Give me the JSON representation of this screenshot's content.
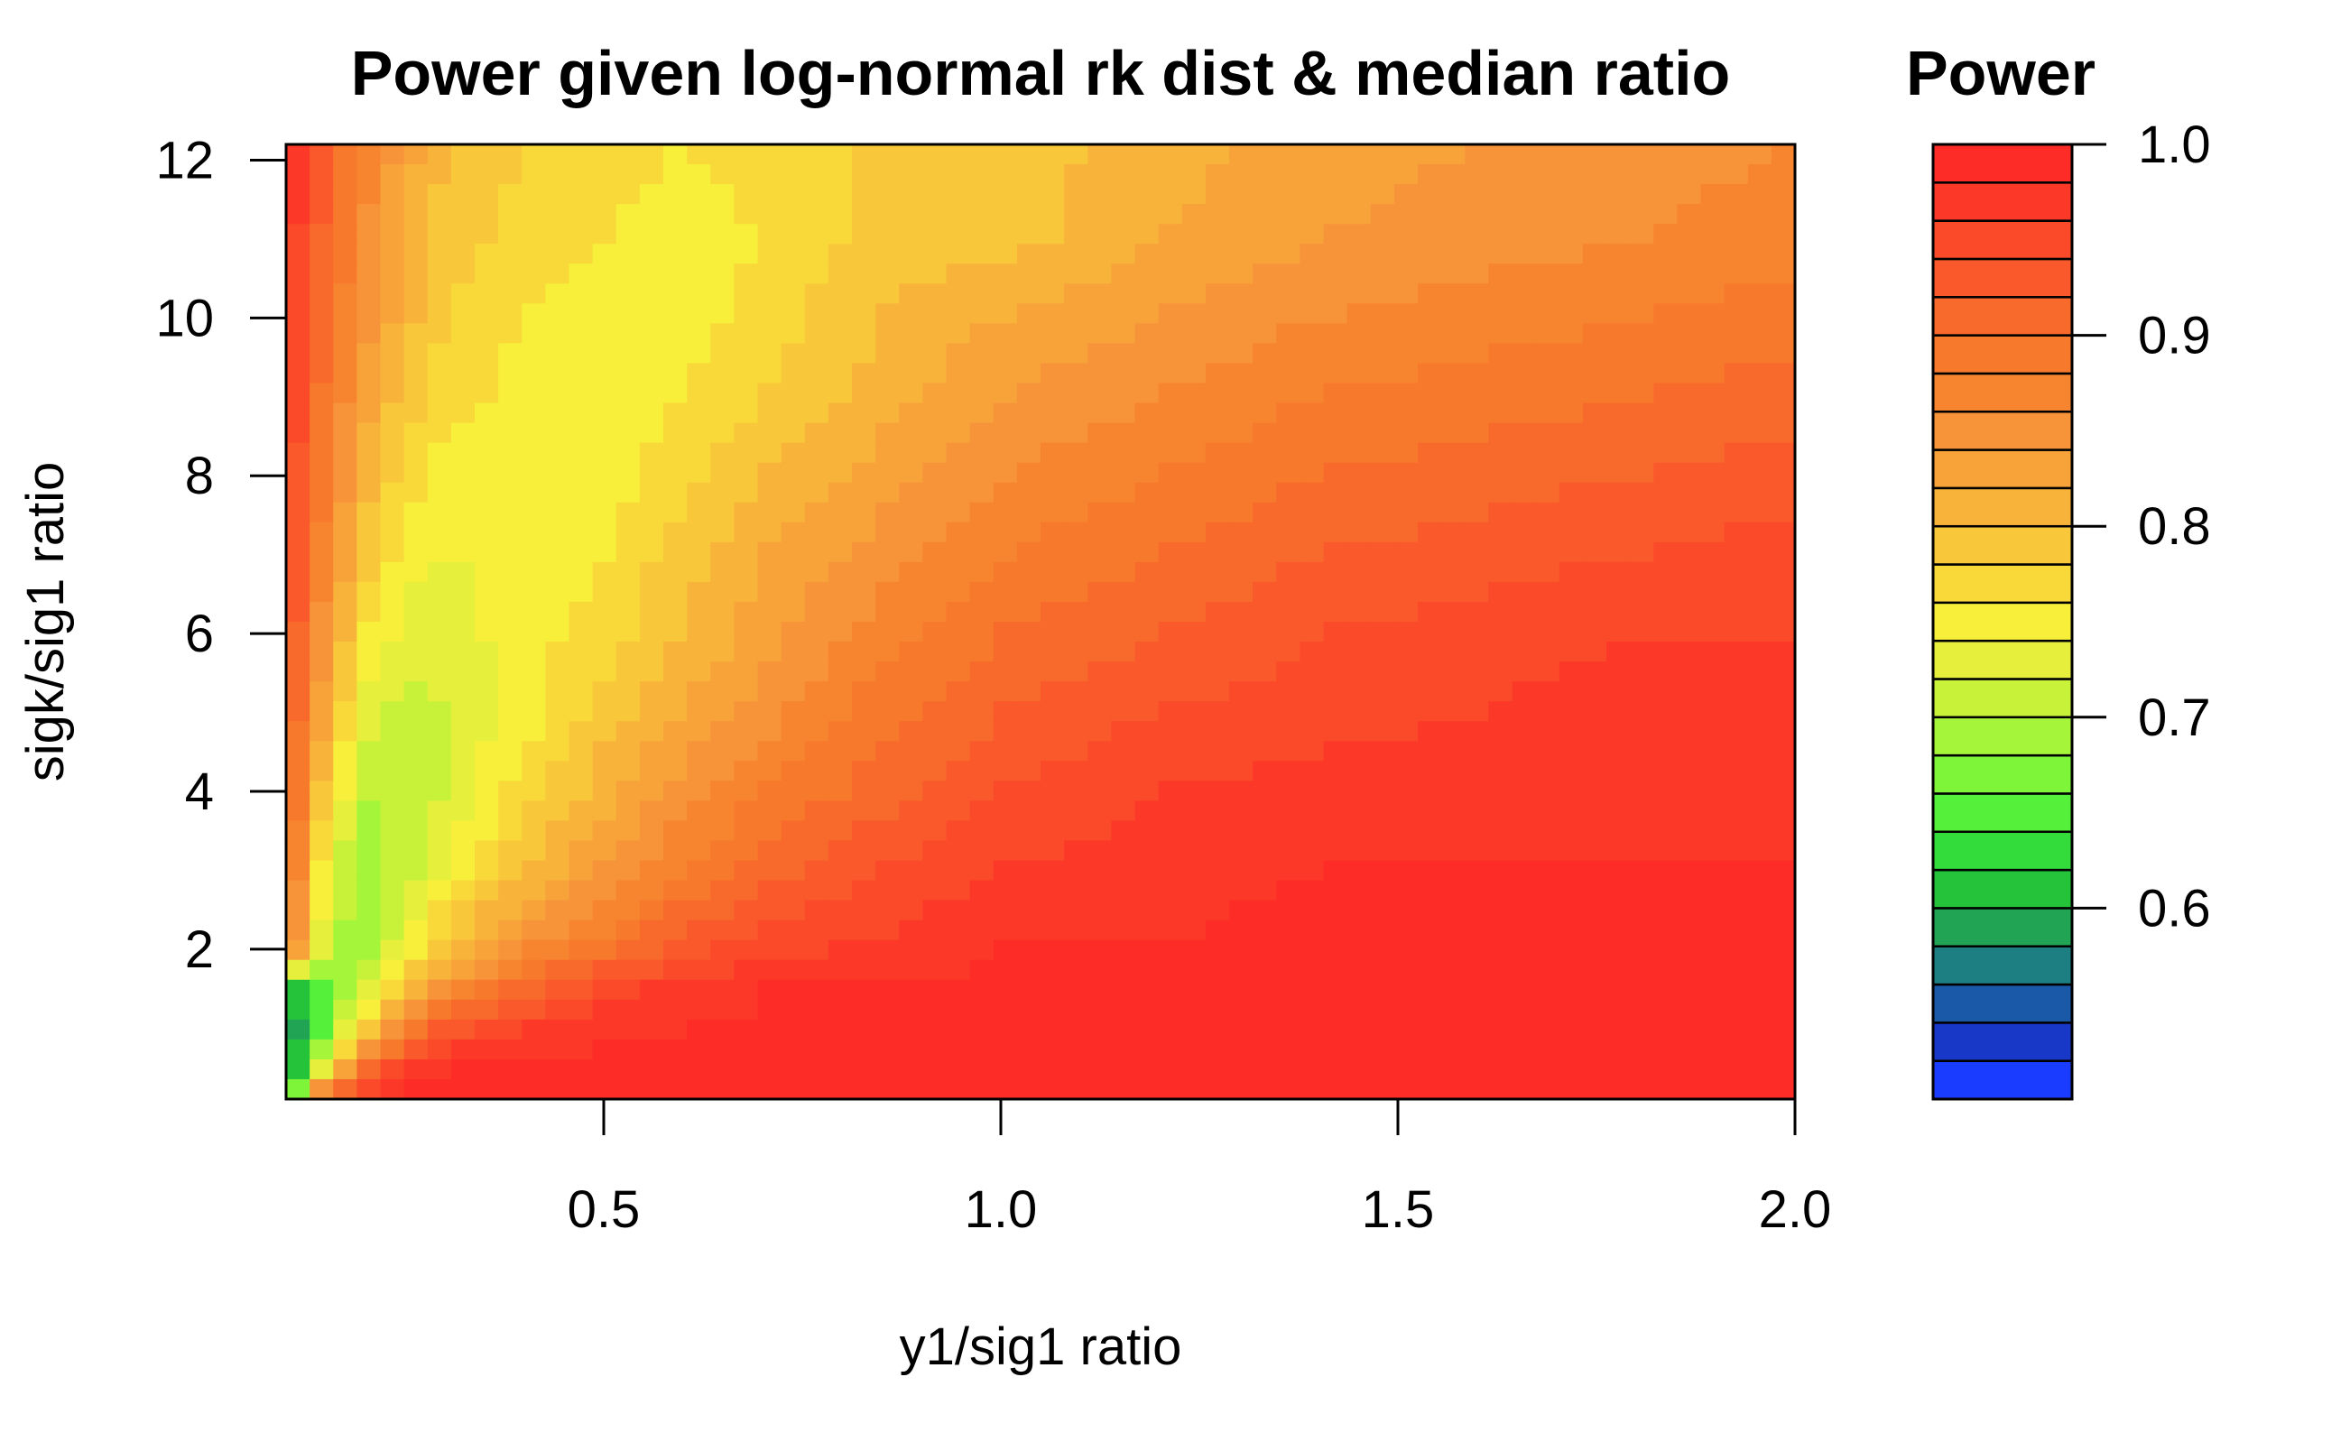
{
  "chart_data": {
    "type": "heatmap",
    "subtype": "filled-contour",
    "title": "Power given log-normal rk dist & median ratio",
    "xlabel": "y1/sig1 ratio",
    "ylabel": "sigk/sig1 ratio",
    "xlim": [
      0.1,
      2.0
    ],
    "ylim": [
      0.1,
      12.2
    ],
    "x_ticks": [
      "0.5",
      "1.0",
      "1.5",
      "2.0"
    ],
    "x_tick_values": [
      0.5,
      1.0,
      1.5,
      2.0
    ],
    "y_ticks": [
      "2",
      "4",
      "6",
      "8",
      "10",
      "12"
    ],
    "y_tick_values": [
      2,
      4,
      6,
      8,
      10,
      12
    ],
    "x": [
      0.1,
      0.15,
      0.2,
      0.25,
      0.3,
      0.4,
      0.5,
      0.6,
      0.7,
      0.8,
      0.9,
      1.0,
      1.2,
      1.4,
      1.6,
      1.8,
      2.0
    ],
    "y": [
      0.1,
      0.5,
      1.0,
      1.5,
      2.0,
      3.0,
      4.0,
      5.0,
      6.0,
      7.0,
      8.0,
      9.0,
      10.0,
      11.0,
      12.2
    ],
    "z": [
      [
        0.6,
        0.93,
        0.98,
        0.99,
        0.99,
        1.0,
        1.0,
        1.0,
        1.0,
        1.0,
        1.0,
        1.0,
        1.0,
        1.0,
        1.0,
        1.0,
        1.0
      ],
      [
        0.55,
        0.75,
        0.9,
        0.96,
        0.98,
        0.99,
        0.99,
        1.0,
        1.0,
        1.0,
        1.0,
        1.0,
        1.0,
        1.0,
        1.0,
        1.0,
        1.0
      ],
      [
        0.57,
        0.66,
        0.78,
        0.88,
        0.93,
        0.96,
        0.97,
        0.98,
        0.98,
        0.99,
        0.99,
        0.99,
        0.99,
        1.0,
        1.0,
        1.0,
        1.0
      ],
      [
        0.6,
        0.65,
        0.72,
        0.8,
        0.85,
        0.91,
        0.95,
        0.97,
        0.98,
        0.98,
        0.98,
        0.99,
        0.99,
        0.99,
        0.99,
        0.99,
        0.99
      ],
      [
        0.9,
        0.7,
        0.69,
        0.74,
        0.8,
        0.86,
        0.89,
        0.93,
        0.95,
        0.96,
        0.97,
        0.98,
        0.98,
        0.99,
        0.99,
        0.99,
        0.99
      ],
      [
        0.92,
        0.74,
        0.68,
        0.71,
        0.74,
        0.8,
        0.84,
        0.88,
        0.91,
        0.93,
        0.95,
        0.96,
        0.97,
        0.98,
        0.98,
        0.98,
        0.98
      ],
      [
        0.93,
        0.78,
        0.7,
        0.7,
        0.72,
        0.77,
        0.81,
        0.85,
        0.88,
        0.9,
        0.92,
        0.94,
        0.96,
        0.97,
        0.97,
        0.98,
        0.98
      ],
      [
        0.94,
        0.82,
        0.73,
        0.71,
        0.72,
        0.75,
        0.79,
        0.82,
        0.85,
        0.88,
        0.9,
        0.92,
        0.94,
        0.95,
        0.96,
        0.97,
        0.97
      ],
      [
        0.95,
        0.84,
        0.76,
        0.73,
        0.73,
        0.75,
        0.77,
        0.8,
        0.83,
        0.86,
        0.88,
        0.9,
        0.92,
        0.94,
        0.95,
        0.96,
        0.96
      ],
      [
        0.96,
        0.86,
        0.79,
        0.75,
        0.74,
        0.74,
        0.76,
        0.79,
        0.82,
        0.84,
        0.86,
        0.88,
        0.9,
        0.92,
        0.93,
        0.94,
        0.95
      ],
      [
        0.96,
        0.88,
        0.81,
        0.77,
        0.75,
        0.74,
        0.75,
        0.77,
        0.8,
        0.82,
        0.84,
        0.86,
        0.88,
        0.9,
        0.91,
        0.92,
        0.93
      ],
      [
        0.97,
        0.89,
        0.83,
        0.79,
        0.77,
        0.75,
        0.75,
        0.76,
        0.78,
        0.8,
        0.82,
        0.84,
        0.86,
        0.88,
        0.89,
        0.9,
        0.91
      ],
      [
        0.97,
        0.9,
        0.85,
        0.81,
        0.78,
        0.76,
        0.75,
        0.75,
        0.77,
        0.79,
        0.81,
        0.82,
        0.84,
        0.86,
        0.87,
        0.88,
        0.89
      ],
      [
        0.98,
        0.91,
        0.86,
        0.82,
        0.79,
        0.77,
        0.76,
        0.75,
        0.76,
        0.78,
        0.79,
        0.79,
        0.82,
        0.84,
        0.85,
        0.86,
        0.87
      ],
      [
        0.98,
        0.92,
        0.87,
        0.83,
        0.8,
        0.78,
        0.77,
        0.76,
        0.77,
        0.78,
        0.79,
        0.79,
        0.81,
        0.83,
        0.84,
        0.85,
        0.86
      ]
    ],
    "legend": {
      "title": "Power",
      "position": "right",
      "ticks": [
        "1.0",
        "0.9",
        "0.8",
        "0.7",
        "0.6"
      ],
      "tick_values": [
        1.0,
        0.9,
        0.8,
        0.7,
        0.6
      ],
      "levels": [
        0.52,
        0.54,
        0.56,
        0.58,
        0.6,
        0.62,
        0.64,
        0.66,
        0.68,
        0.7,
        0.72,
        0.74,
        0.76,
        0.78,
        0.8,
        0.82,
        0.84,
        0.86,
        0.88,
        0.9,
        0.92,
        0.94,
        0.96,
        0.98,
        1.0
      ],
      "colors": [
        "#1a3cff",
        "#1838c8",
        "#1a58a8",
        "#1e7f82",
        "#22a455",
        "#25c33a",
        "#33dc3a",
        "#55f03a",
        "#7ff53a",
        "#a5f53a",
        "#c8f23a",
        "#e6f03c",
        "#f7ef3a",
        "#f9d93a",
        "#f9c83a",
        "#f8b33a",
        "#f7a33a",
        "#f7943a",
        "#f7842f",
        "#f77a2c",
        "#f86a2c",
        "#f9592b",
        "#fa4a2a",
        "#fc3929",
        "#fd2c26"
      ]
    },
    "grid": false
  }
}
